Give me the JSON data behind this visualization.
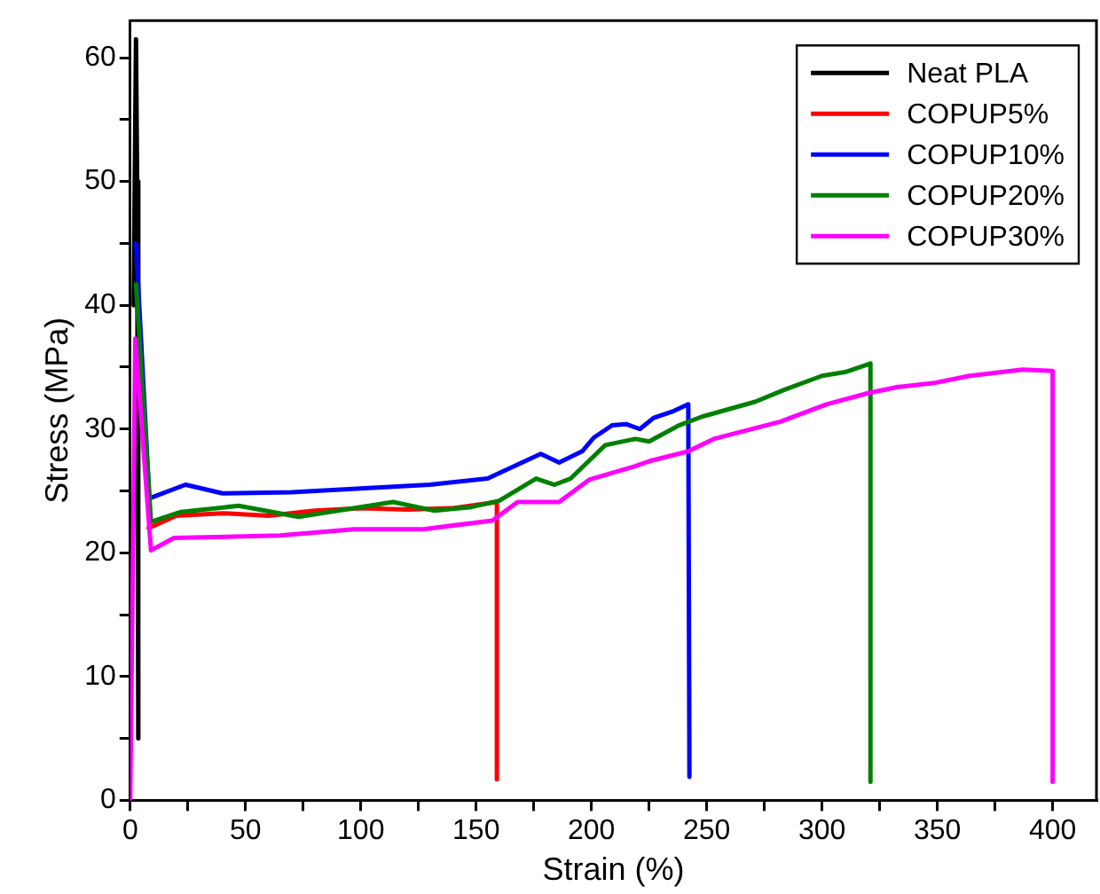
{
  "chart_data": {
    "type": "line",
    "xlabel": "Strain (%)",
    "ylabel": "Stress (MPa)",
    "xlim": [
      0,
      419
    ],
    "ylim": [
      0,
      63
    ],
    "xticks": [
      0,
      {
        "value": 25,
        "label": null
      },
      50,
      {
        "value": 75,
        "label": null
      },
      100,
      {
        "value": 125,
        "label": null
      },
      150,
      {
        "value": 175,
        "label": null
      },
      200,
      {
        "value": 225,
        "label": null
      },
      250,
      {
        "value": 275,
        "label": null
      },
      300,
      {
        "value": 325,
        "label": null
      },
      350,
      {
        "value": 375,
        "label": null
      },
      400
    ],
    "yticks": [
      0,
      {
        "value": 5,
        "label": null
      },
      10,
      {
        "value": 15,
        "label": null
      },
      20,
      {
        "value": 25,
        "label": null
      },
      30,
      {
        "value": 35,
        "label": null
      },
      40,
      {
        "value": 45,
        "label": null
      },
      50,
      {
        "value": 55,
        "label": null
      },
      60
    ],
    "grid": false,
    "legend": "top right",
    "marker": "none",
    "line_style": "solid",
    "series": [
      {
        "name": "Neat PLA",
        "color": "#000000",
        "x": [
          1.5,
          2.5,
          3,
          3.5
        ],
        "values": [
          40,
          61.5,
          50,
          5
        ]
      },
      {
        "name": "COPUP5%",
        "color": "#ff0000",
        "x": [
          8,
          20,
          40,
          60,
          80,
          100,
          120,
          140,
          155,
          159,
          159
        ],
        "values": [
          22,
          23,
          23.2,
          23,
          23.4,
          23.6,
          23.5,
          23.6,
          24,
          24.1,
          1.7
        ]
      },
      {
        "name": "COPUP10%",
        "color": "#0000ff",
        "x": [
          2.5,
          8.3,
          24,
          40,
          70,
          100,
          130,
          155,
          178,
          186,
          196,
          201,
          209,
          215,
          221,
          227,
          235,
          242,
          242.5
        ],
        "values": [
          45,
          24.4,
          25.5,
          24.8,
          24.9,
          25.2,
          25.5,
          26,
          28,
          27.3,
          28.2,
          29.3,
          30.3,
          30.4,
          30,
          30.9,
          31.4,
          32,
          1.9
        ]
      },
      {
        "name": "COPUP20%",
        "color": "#008000",
        "x": [
          2.5,
          9,
          22,
          47,
          73,
          114,
          132,
          148,
          160,
          176,
          184,
          191,
          206,
          219,
          225,
          238,
          248,
          271,
          284,
          300,
          310,
          321,
          321
        ],
        "values": [
          41.7,
          22.5,
          23.3,
          23.8,
          22.9,
          24.1,
          23.4,
          23.7,
          24.2,
          26,
          25.5,
          26,
          28.7,
          29.2,
          29,
          30.3,
          31,
          32.2,
          33.2,
          34.3,
          34.6,
          35.3,
          1.5
        ]
      },
      {
        "name": "COPUP30%",
        "color": "#ff00ff",
        "x": [
          0,
          1.5,
          2.2,
          9,
          19,
          65,
          97,
          127,
          157,
          168,
          186,
          199,
          219,
          225,
          242,
          253,
          282,
          302,
          320,
          333,
          348,
          364,
          387,
          400,
          400
        ],
        "values": [
          0,
          25,
          37.3,
          20.2,
          21.2,
          21.4,
          21.9,
          21.9,
          22.6,
          24.1,
          24.1,
          25.9,
          27,
          27.4,
          28.2,
          29.2,
          30.6,
          32,
          32.9,
          33.4,
          33.7,
          34.3,
          34.8,
          34.7,
          1.5
        ]
      }
    ]
  }
}
